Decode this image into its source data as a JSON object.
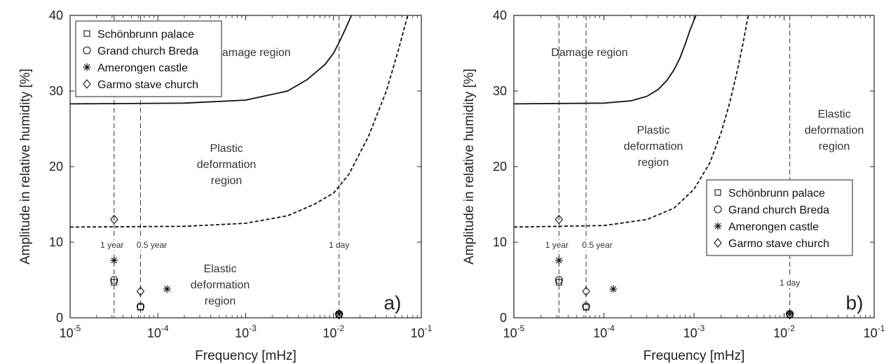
{
  "chart_data": [
    {
      "type": "scatter",
      "panel_label": "a)",
      "xlabel": "Frequency [mHz]",
      "ylabel": "Amplitude in relative humidity [%]",
      "xscale": "log",
      "xlim": [
        1e-05,
        0.1
      ],
      "ylim": [
        0,
        40
      ],
      "x_ticks": [
        "-5",
        "-4",
        "-3",
        "-2",
        "-1"
      ],
      "y_ticks": [
        "0",
        "10",
        "20",
        "30",
        "40"
      ],
      "grid": false,
      "legend_position": "top-left",
      "series": [
        {
          "name": "Schönbrunn palace",
          "marker": "square",
          "points": [
            [
              3.17e-05,
              4.7
            ],
            [
              6.34e-05,
              1.4
            ],
            [
              0.01157,
              0.4
            ]
          ]
        },
        {
          "name": "Grand church Breda",
          "marker": "circle",
          "points": [
            [
              3.17e-05,
              5.0
            ],
            [
              6.34e-05,
              1.5
            ],
            [
              0.01157,
              0.5
            ]
          ]
        },
        {
          "name": "Amerongen castle",
          "marker": "asterisk",
          "points": [
            [
              3.17e-05,
              7.6
            ],
            [
              0.000127,
              3.8
            ],
            [
              0.01157,
              0.5
            ]
          ]
        },
        {
          "name": "Garmo stave church",
          "marker": "diamond",
          "points": [
            [
              3.17e-05,
              13.0
            ],
            [
              6.34e-05,
              3.5
            ],
            [
              0.01157,
              0.4
            ]
          ]
        }
      ],
      "damage_curve": {
        "style": "solid",
        "x": [
          1e-05,
          0.0002,
          0.001,
          0.003,
          0.005,
          0.008,
          0.01,
          0.012,
          0.014,
          0.016
        ],
        "y": [
          28.3,
          28.4,
          28.8,
          30.0,
          31.5,
          33.5,
          35.0,
          36.8,
          38.5,
          40.0
        ]
      },
      "plastic_curve": {
        "style": "dashed",
        "x": [
          1e-05,
          0.0002,
          0.001,
          0.003,
          0.006,
          0.01,
          0.015,
          0.025,
          0.04,
          0.055,
          0.07
        ],
        "y": [
          12.0,
          12.1,
          12.5,
          13.5,
          15.0,
          16.5,
          19.0,
          24.0,
          30.0,
          35.5,
          40.0
        ]
      },
      "reference_lines": [
        {
          "label": "1 year",
          "x": 3.17e-05
        },
        {
          "label": "0.5 year",
          "x": 6.34e-05
        },
        {
          "label": "1 day",
          "x": 0.01157
        }
      ],
      "region_labels": {
        "damage": [
          "Damage region"
        ],
        "plastic": [
          "Plastic",
          "deformation",
          "region"
        ],
        "elastic": [
          "Elastic",
          "deformation",
          "region"
        ]
      }
    },
    {
      "type": "scatter",
      "panel_label": "b)",
      "xlabel": "Frequency [mHz]",
      "ylabel": "Amplitude in relative humidity [%]",
      "xscale": "log",
      "xlim": [
        1e-05,
        0.1
      ],
      "ylim": [
        0,
        40
      ],
      "x_ticks": [
        "-5",
        "-4",
        "-3",
        "-2",
        "-1"
      ],
      "y_ticks": [
        "0",
        "10",
        "20",
        "30",
        "40"
      ],
      "grid": false,
      "legend_position": "bottom-right",
      "series": [
        {
          "name": "Schönbrunn palace",
          "marker": "square",
          "points": [
            [
              3.17e-05,
              4.7
            ],
            [
              6.34e-05,
              1.4
            ],
            [
              0.01157,
              0.4
            ]
          ]
        },
        {
          "name": "Grand church Breda",
          "marker": "circle",
          "points": [
            [
              3.17e-05,
              5.0
            ],
            [
              6.34e-05,
              1.5
            ],
            [
              0.01157,
              0.5
            ]
          ]
        },
        {
          "name": "Amerongen castle",
          "marker": "asterisk",
          "points": [
            [
              3.17e-05,
              7.6
            ],
            [
              0.000127,
              3.8
            ],
            [
              0.01157,
              0.5
            ]
          ]
        },
        {
          "name": "Garmo stave church",
          "marker": "diamond",
          "points": [
            [
              3.17e-05,
              13.0
            ],
            [
              6.34e-05,
              3.5
            ],
            [
              0.01157,
              0.4
            ]
          ]
        }
      ],
      "damage_curve": {
        "style": "solid",
        "x": [
          1e-05,
          0.0001,
          0.0002,
          0.0003,
          0.0004,
          0.0005,
          0.0006,
          0.0007,
          0.0008,
          0.0009,
          0.00105
        ],
        "y": [
          28.3,
          28.4,
          28.7,
          29.3,
          30.2,
          31.4,
          32.8,
          34.4,
          36.2,
          38.0,
          40.0
        ]
      },
      "plastic_curve": {
        "style": "dashed",
        "x": [
          1e-05,
          0.0001,
          0.0003,
          0.0006,
          0.001,
          0.0015,
          0.002,
          0.0025,
          0.003,
          0.0035,
          0.004
        ],
        "y": [
          12.0,
          12.2,
          13.0,
          14.5,
          17.0,
          20.5,
          24.5,
          28.5,
          32.5,
          36.3,
          40.0
        ]
      },
      "reference_lines": [
        {
          "label": "1 year",
          "x": 3.17e-05
        },
        {
          "label": "0.5 year",
          "x": 6.34e-05
        },
        {
          "label": "1 day",
          "x": 0.01157
        }
      ],
      "region_labels": {
        "damage": [
          "Damage region"
        ],
        "plastic": [
          "Plastic",
          "deformation",
          "region"
        ],
        "elastic": [
          "Elastic",
          "deformation",
          "region"
        ]
      }
    }
  ]
}
